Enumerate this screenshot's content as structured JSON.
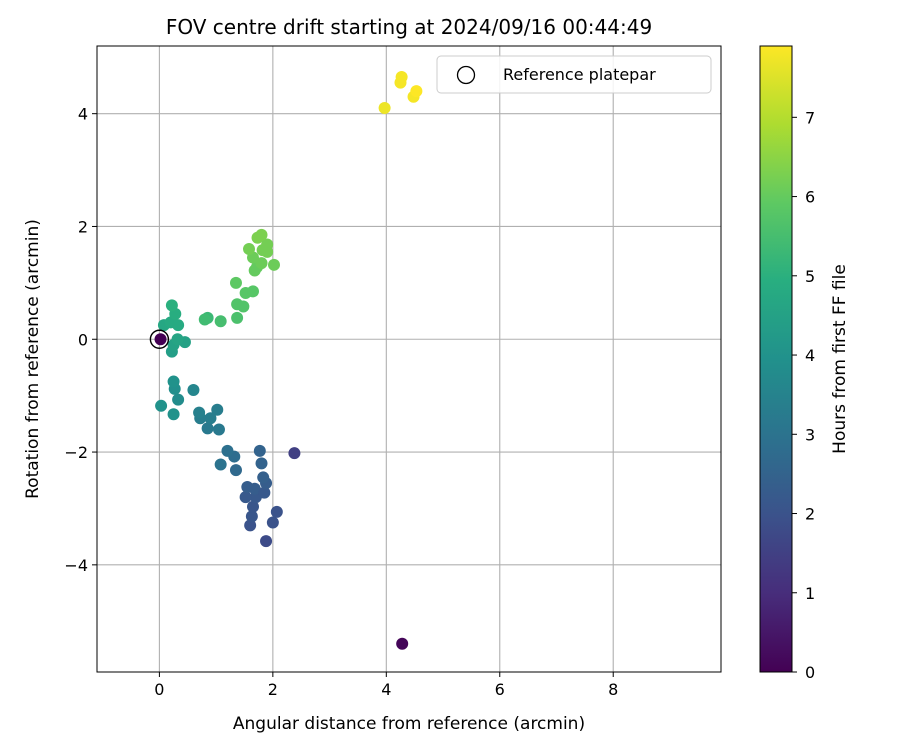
{
  "chart_data": {
    "type": "scatter",
    "title": "FOV centre drift starting at 2024/09/16 00:44:49",
    "xlabel": "Angular distance from reference (arcmin)",
    "ylabel": "Rotation from reference (arcmin)",
    "xlim": [
      -1.1,
      9.9
    ],
    "ylim": [
      -5.9,
      5.2
    ],
    "xticks": [
      0,
      2,
      4,
      6,
      8
    ],
    "yticks": [
      -4,
      -2,
      0,
      2,
      4
    ],
    "grid": true,
    "legend": {
      "label": "Reference platepar",
      "location": "top-right"
    },
    "reference_point": {
      "x": 0,
      "y": 0
    },
    "colorbar": {
      "label": "Hours from first FF file",
      "range": [
        0,
        7.9
      ],
      "ticks": [
        0,
        1,
        2,
        3,
        4,
        5,
        6,
        7
      ],
      "colormap": "viridis"
    },
    "points": [
      {
        "x": 4.28,
        "y": -5.4,
        "c": 0.1
      },
      {
        "x": 0.02,
        "y": 0.0,
        "c": 0.0
      },
      {
        "x": 2.38,
        "y": -2.02,
        "c": 1.5
      },
      {
        "x": 1.88,
        "y": -3.58,
        "c": 1.8
      },
      {
        "x": 1.6,
        "y": -3.3,
        "c": 2.0
      },
      {
        "x": 2.0,
        "y": -3.25,
        "c": 2.0
      },
      {
        "x": 2.07,
        "y": -3.06,
        "c": 2.0
      },
      {
        "x": 1.63,
        "y": -3.14,
        "c": 2.1
      },
      {
        "x": 1.65,
        "y": -2.97,
        "c": 2.1
      },
      {
        "x": 1.7,
        "y": -2.8,
        "c": 2.2
      },
      {
        "x": 1.52,
        "y": -2.8,
        "c": 2.2
      },
      {
        "x": 1.55,
        "y": -2.62,
        "c": 2.3
      },
      {
        "x": 1.68,
        "y": -2.65,
        "c": 2.3
      },
      {
        "x": 1.85,
        "y": -2.72,
        "c": 2.2
      },
      {
        "x": 1.88,
        "y": -2.55,
        "c": 2.3
      },
      {
        "x": 1.83,
        "y": -2.45,
        "c": 2.4
      },
      {
        "x": 1.8,
        "y": -2.2,
        "c": 2.5
      },
      {
        "x": 1.77,
        "y": -1.98,
        "c": 2.5
      },
      {
        "x": 1.35,
        "y": -2.32,
        "c": 2.7
      },
      {
        "x": 1.32,
        "y": -2.08,
        "c": 2.8
      },
      {
        "x": 1.2,
        "y": -1.98,
        "c": 2.9
      },
      {
        "x": 1.08,
        "y": -2.22,
        "c": 3.0
      },
      {
        "x": 1.05,
        "y": -1.6,
        "c": 3.2
      },
      {
        "x": 0.85,
        "y": -1.58,
        "c": 3.2
      },
      {
        "x": 0.9,
        "y": -1.4,
        "c": 3.3
      },
      {
        "x": 0.72,
        "y": -1.4,
        "c": 3.3
      },
      {
        "x": 0.7,
        "y": -1.3,
        "c": 3.4
      },
      {
        "x": 1.02,
        "y": -1.25,
        "c": 3.3
      },
      {
        "x": 0.6,
        "y": -0.9,
        "c": 3.6
      },
      {
        "x": 0.33,
        "y": -1.07,
        "c": 3.8
      },
      {
        "x": 0.27,
        "y": -0.88,
        "c": 3.9
      },
      {
        "x": 0.25,
        "y": -0.75,
        "c": 4.0
      },
      {
        "x": 0.03,
        "y": -1.18,
        "c": 4.0
      },
      {
        "x": 0.25,
        "y": -1.33,
        "c": 4.0
      },
      {
        "x": 0.22,
        "y": -0.22,
        "c": 4.4
      },
      {
        "x": 0.25,
        "y": -0.1,
        "c": 4.5
      },
      {
        "x": 0.45,
        "y": -0.05,
        "c": 4.5
      },
      {
        "x": 0.32,
        "y": 0.0,
        "c": 4.6
      },
      {
        "x": 0.08,
        "y": 0.25,
        "c": 4.7
      },
      {
        "x": 0.2,
        "y": 0.3,
        "c": 4.8
      },
      {
        "x": 0.33,
        "y": 0.25,
        "c": 4.8
      },
      {
        "x": 0.28,
        "y": 0.45,
        "c": 4.9
      },
      {
        "x": 0.22,
        "y": 0.6,
        "c": 5.0
      },
      {
        "x": 0.85,
        "y": 0.38,
        "c": 5.3
      },
      {
        "x": 0.8,
        "y": 0.35,
        "c": 5.4
      },
      {
        "x": 1.08,
        "y": 0.32,
        "c": 5.5
      },
      {
        "x": 1.37,
        "y": 0.38,
        "c": 5.6
      },
      {
        "x": 1.37,
        "y": 0.62,
        "c": 5.7
      },
      {
        "x": 1.48,
        "y": 0.58,
        "c": 5.7
      },
      {
        "x": 1.52,
        "y": 0.82,
        "c": 5.8
      },
      {
        "x": 1.65,
        "y": 0.85,
        "c": 5.8
      },
      {
        "x": 1.35,
        "y": 1.0,
        "c": 5.9
      },
      {
        "x": 1.68,
        "y": 1.22,
        "c": 6.0
      },
      {
        "x": 1.72,
        "y": 1.28,
        "c": 6.0
      },
      {
        "x": 1.8,
        "y": 1.35,
        "c": 6.1
      },
      {
        "x": 2.02,
        "y": 1.32,
        "c": 6.1
      },
      {
        "x": 1.65,
        "y": 1.45,
        "c": 6.1
      },
      {
        "x": 1.82,
        "y": 1.58,
        "c": 6.2
      },
      {
        "x": 1.9,
        "y": 1.55,
        "c": 6.2
      },
      {
        "x": 1.9,
        "y": 1.68,
        "c": 6.2
      },
      {
        "x": 1.58,
        "y": 1.6,
        "c": 6.2
      },
      {
        "x": 1.73,
        "y": 1.8,
        "c": 6.3
      },
      {
        "x": 1.8,
        "y": 1.85,
        "c": 6.3
      },
      {
        "x": 3.97,
        "y": 4.1,
        "c": 7.7
      },
      {
        "x": 4.25,
        "y": 4.55,
        "c": 7.8
      },
      {
        "x": 4.27,
        "y": 4.65,
        "c": 7.8
      },
      {
        "x": 4.48,
        "y": 4.3,
        "c": 7.8
      },
      {
        "x": 4.53,
        "y": 4.4,
        "c": 7.9
      }
    ]
  }
}
